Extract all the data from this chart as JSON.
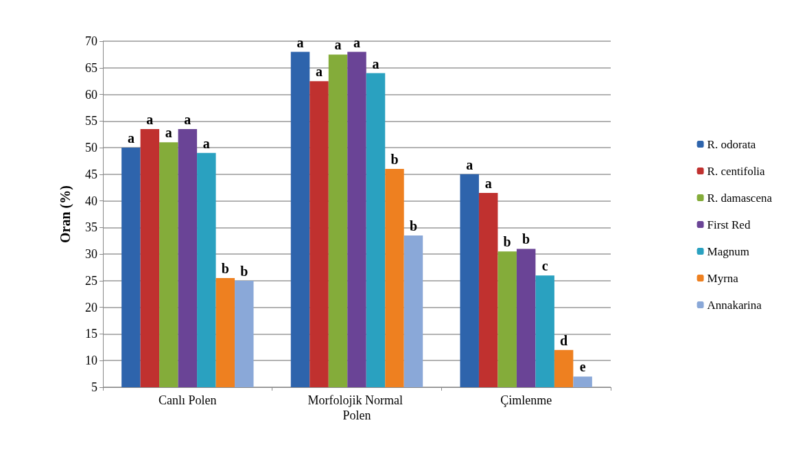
{
  "chart_data": {
    "type": "bar",
    "ylabel": "Oran (%)",
    "categories": [
      "Canlı Polen",
      "Morfolojik Normal Polen",
      "Çimlenme"
    ],
    "series": [
      {
        "name": "R. odorata",
        "color": "#2e64ac",
        "values": [
          50,
          68,
          45
        ],
        "value_labels": [
          "a",
          "a",
          "a"
        ]
      },
      {
        "name": "R. centifolia",
        "color": "#c0312f",
        "values": [
          53.5,
          62.5,
          41.5
        ],
        "value_labels": [
          "a",
          "a",
          "a"
        ]
      },
      {
        "name": "R. damascena",
        "color": "#84ac3a",
        "values": [
          51,
          67.5,
          30.5
        ],
        "value_labels": [
          "a",
          "a",
          "b"
        ]
      },
      {
        "name": "First Red",
        "color": "#6a4496",
        "values": [
          53.5,
          68,
          31
        ],
        "value_labels": [
          "a",
          "a",
          "b"
        ]
      },
      {
        "name": "Magnum",
        "color": "#2aa1c0",
        "values": [
          49,
          64,
          26
        ],
        "value_labels": [
          "a",
          "a",
          "c"
        ]
      },
      {
        "name": "Myrna",
        "color": "#ee8020",
        "values": [
          25.5,
          46,
          12
        ],
        "value_labels": [
          "b",
          "b",
          "d"
        ]
      },
      {
        "name": "Annakarina",
        "color": "#8aa8d8",
        "values": [
          25,
          33.5,
          7
        ],
        "value_labels": [
          "b",
          "b",
          "e"
        ]
      }
    ],
    "ylim": [
      5,
      70
    ],
    "yticks": [
      5,
      10,
      15,
      20,
      25,
      30,
      35,
      40,
      45,
      50,
      55,
      60,
      65,
      70
    ],
    "grid": true,
    "legend": "right"
  }
}
